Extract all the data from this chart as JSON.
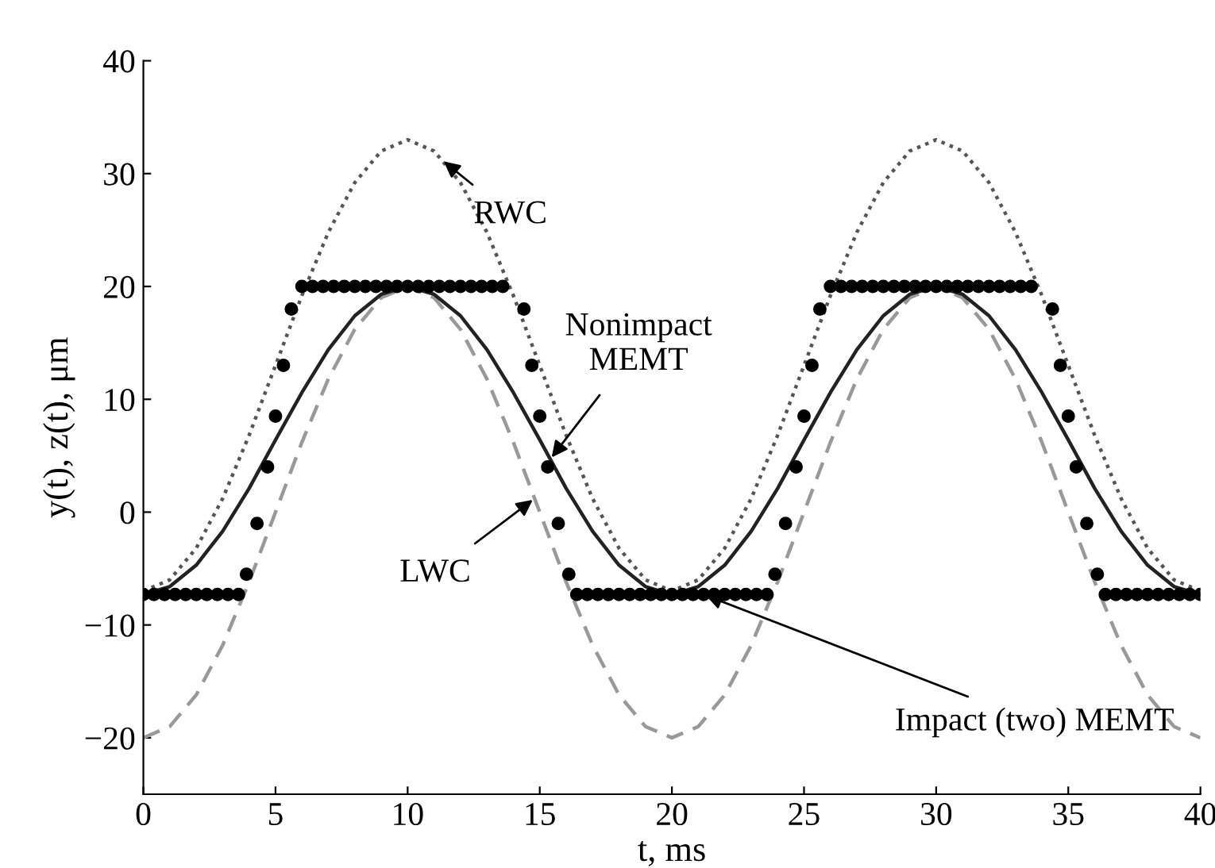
{
  "chart_data": {
    "type": "line",
    "xlabel": "t, ms",
    "ylabel": "y(t), z(t), μm",
    "xlim": [
      0,
      40
    ],
    "ylim": [
      -25,
      40
    ],
    "xticks": [
      0,
      5,
      10,
      15,
      20,
      25,
      30,
      35,
      40
    ],
    "yticks": [
      -20,
      -10,
      0,
      10,
      20,
      30,
      40
    ],
    "grid": false,
    "legend": false,
    "series": [
      {
        "line_style": "dotted",
        "color": "#555555",
        "x": [
          0,
          1,
          2,
          3,
          4,
          5,
          6,
          7,
          8,
          9,
          10,
          11,
          12,
          13,
          14,
          15,
          16,
          17,
          18,
          19,
          20,
          21,
          22,
          23,
          24,
          25,
          26,
          27,
          28,
          29,
          30,
          31,
          32,
          33,
          34,
          35,
          36,
          37,
          38,
          39,
          40
        ],
        "values": [
          -7,
          -6,
          -3.2,
          1.2,
          6.8,
          13,
          19.2,
          24.8,
          29.2,
          32,
          33,
          32,
          29.2,
          24.8,
          19.2,
          13,
          6.8,
          1.2,
          -3.2,
          -6,
          -7,
          -6,
          -3.2,
          1.2,
          6.8,
          13,
          19.2,
          24.8,
          29.2,
          32,
          33,
          32,
          29.2,
          24.8,
          19.2,
          13,
          6.8,
          1.2,
          -3.2,
          -6,
          -7
        ]
      },
      {
        "line_style": "dashed",
        "color": "#999999",
        "x": [
          0,
          1,
          2,
          3,
          4,
          5,
          6,
          7,
          8,
          9,
          10,
          11,
          12,
          13,
          14,
          15,
          16,
          17,
          18,
          19,
          20,
          21,
          22,
          23,
          24,
          25,
          26,
          27,
          28,
          29,
          30,
          31,
          32,
          33,
          34,
          35,
          36,
          37,
          38,
          39,
          40
        ],
        "values": [
          -20,
          -19,
          -16.2,
          -11.8,
          -6.2,
          0,
          6.2,
          11.8,
          16.2,
          19,
          20,
          19,
          16.2,
          11.8,
          6.2,
          0,
          -6.2,
          -11.8,
          -16.2,
          -19,
          -20,
          -19,
          -16.2,
          -11.8,
          -6.2,
          0,
          6.2,
          11.8,
          16.2,
          19,
          20,
          19,
          16.2,
          11.8,
          6.2,
          0,
          -6.2,
          -11.8,
          -16.2,
          -19,
          -20
        ]
      },
      {
        "line_style": "solid",
        "color": "#222222",
        "x": [
          0,
          1,
          2,
          3,
          4,
          5,
          6,
          7,
          8,
          9,
          10,
          11,
          12,
          13,
          14,
          15,
          16,
          17,
          18,
          19,
          20,
          21,
          22,
          23,
          24,
          25,
          26,
          27,
          28,
          29,
          30,
          31,
          32,
          33,
          34,
          35,
          36,
          37,
          38,
          39,
          40
        ],
        "values": [
          -7.3,
          -6.6,
          -4.7,
          -1.7,
          2.1,
          6.4,
          10.6,
          14.4,
          17.4,
          19.3,
          20,
          19.3,
          17.4,
          14.4,
          10.6,
          6.4,
          2.1,
          -1.7,
          -4.7,
          -6.6,
          -7.3,
          -6.6,
          -4.7,
          -1.7,
          2.1,
          6.4,
          10.6,
          14.4,
          17.4,
          19.3,
          20,
          19.3,
          17.4,
          14.4,
          10.6,
          6.4,
          2.1,
          -1.7,
          -4.7,
          -6.6,
          -7.3
        ]
      },
      {
        "type": "scatter",
        "marker": "circle",
        "color": "#000000",
        "x": [
          0,
          0.4,
          0.8,
          1.2,
          1.6,
          2,
          2.4,
          2.8,
          3.2,
          3.6,
          3.9,
          4.3,
          4.7,
          5,
          5.3,
          5.6,
          6,
          6.4,
          6.8,
          7.2,
          7.6,
          8,
          8.4,
          8.8,
          9.2,
          9.6,
          10,
          10.4,
          10.8,
          11.2,
          11.6,
          12,
          12.4,
          12.8,
          13.2,
          13.6,
          14.4,
          14.7,
          15,
          15.3,
          15.7,
          16.1,
          16.4,
          16.8,
          17.2,
          17.6,
          18,
          18.4,
          18.8,
          19.2,
          19.6,
          20,
          20.4,
          20.8,
          21.2,
          21.6,
          22,
          22.4,
          22.8,
          23.2,
          23.6,
          23.9,
          24.3,
          24.7,
          25,
          25.3,
          25.6,
          26,
          26.4,
          26.8,
          27.2,
          27.6,
          28,
          28.4,
          28.8,
          29.2,
          29.6,
          30,
          30.4,
          30.8,
          31.2,
          31.6,
          32,
          32.4,
          32.8,
          33.2,
          33.6,
          34.4,
          34.7,
          35,
          35.3,
          35.7,
          36.1,
          36.4,
          36.8,
          37.2,
          37.6,
          38,
          38.4,
          38.8,
          39.2,
          39.6,
          40
        ],
        "values": [
          -7.3,
          -7.3,
          -7.3,
          -7.3,
          -7.3,
          -7.3,
          -7.3,
          -7.3,
          -7.3,
          -7.3,
          -5.5,
          -1,
          4,
          8.5,
          13,
          18,
          20,
          20,
          20,
          20,
          20,
          20,
          20,
          20,
          20,
          20,
          20,
          20,
          20,
          20,
          20,
          20,
          20,
          20,
          20,
          20,
          18,
          13,
          8.5,
          4,
          -1,
          -5.5,
          -7.3,
          -7.3,
          -7.3,
          -7.3,
          -7.3,
          -7.3,
          -7.3,
          -7.3,
          -7.3,
          -7.3,
          -7.3,
          -7.3,
          -7.3,
          -7.3,
          -7.3,
          -7.3,
          -7.3,
          -7.3,
          -7.3,
          -5.5,
          -1,
          4,
          8.5,
          13,
          18,
          20,
          20,
          20,
          20,
          20,
          20,
          20,
          20,
          20,
          20,
          20,
          20,
          20,
          20,
          20,
          20,
          20,
          20,
          20,
          20,
          18,
          13,
          8.5,
          4,
          -1,
          -5.5,
          -7.3,
          -7.3,
          -7.3,
          -7.3,
          -7.3,
          -7.3,
          -7.3,
          -7.3,
          -7.3,
          -7.3
        ]
      }
    ],
    "annotations": [
      {
        "text": "RWC",
        "x": 11.3,
        "y": 31.2
      },
      {
        "text": "Nonimpact\nMEMT",
        "x": 15.4,
        "y": 4.7
      },
      {
        "text": "LWC",
        "x": 14.8,
        "y": 1.2
      },
      {
        "text": "Impact (two) MEMT",
        "x": 21.2,
        "y": -7.3
      }
    ]
  }
}
